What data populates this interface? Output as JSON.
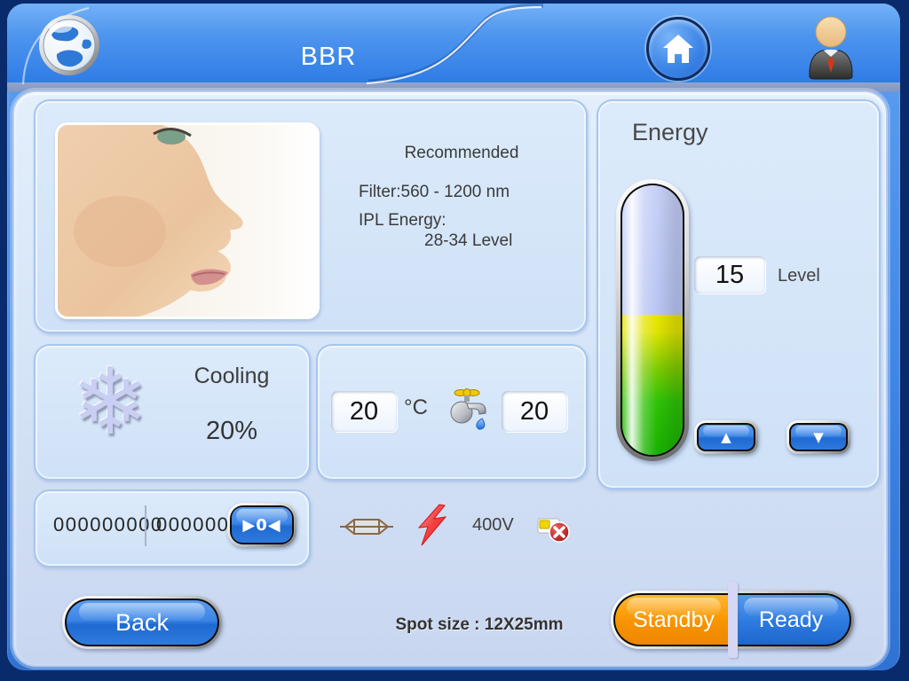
{
  "window": {
    "title": "BBR"
  },
  "colors": {
    "navy": "#0a2b6b",
    "header_blue": "#3b82e6",
    "panel_bg": "#d6e5f8",
    "accent_blue": "#2a76dd",
    "standby_orange": "#f79400",
    "ready_blue": "#2d7ae0",
    "gauge_blue": "#aab9ee",
    "gauge_yellow": "#e8e400",
    "gauge_green": "#2cc000",
    "text_dark": "#3c3c3c"
  },
  "header": {
    "title": "BBR",
    "icons": [
      "globe-icon",
      "home-icon",
      "user-icon"
    ]
  },
  "recommend": {
    "title": "Recommended",
    "filter": "Filter:560 - 1200 nm",
    "ipl_label": "IPL Energy:",
    "ipl_value": "28-34  Level"
  },
  "energy": {
    "title": "Energy",
    "level": "15",
    "level_label": "Level",
    "up_label": "▲",
    "down_label": "▼",
    "gauge_fill_percent": 52
  },
  "cooling": {
    "label": "Cooling",
    "percent": "20%",
    "icon": "snowflake-icon"
  },
  "temperature": {
    "celsius": "20",
    "unit": "°C",
    "flow": "20",
    "icon": "tap-icon"
  },
  "counters": {
    "total": "000000000",
    "session": "000000",
    "reset_label": "▶0◀"
  },
  "status": {
    "voltage": "400V",
    "icons": [
      "lamp-icon",
      "lightning-icon",
      "card-disabled-icon"
    ]
  },
  "footer": {
    "back": "Back",
    "spot_size": "Spot size : 12X25mm",
    "standby": "Standby",
    "ready": "Ready"
  }
}
